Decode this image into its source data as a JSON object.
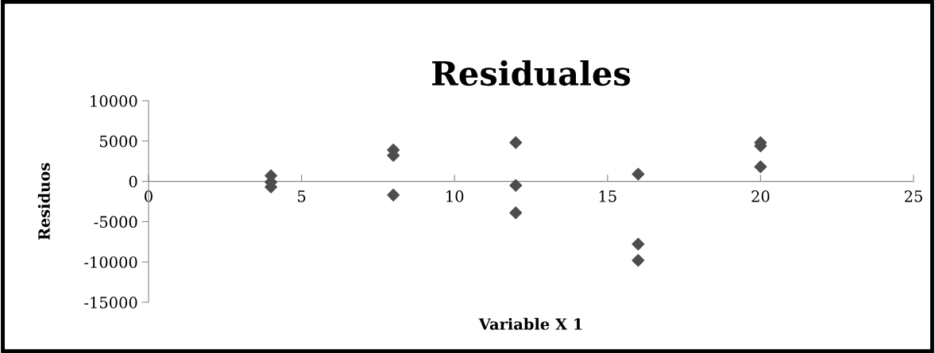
{
  "chart_data": {
    "type": "scatter",
    "title": "Residuales",
    "xlabel": "Variable X 1",
    "ylabel": "Residuos",
    "x": [
      4,
      4,
      4,
      8,
      8,
      8,
      12,
      12,
      12,
      16,
      16,
      16,
      20,
      20,
      20
    ],
    "values": [
      700,
      -100,
      -700,
      3900,
      3200,
      -1700,
      4800,
      -500,
      -3900,
      900,
      -7800,
      -9800,
      4800,
      4400,
      1800
    ],
    "color": "#4d4d4d",
    "marker": "diamond",
    "grid": false,
    "legend": false,
    "xlim": [
      0,
      25
    ],
    "xticks": [
      0,
      5,
      10,
      15,
      20,
      25
    ],
    "ylim": [
      -15000,
      10000
    ],
    "yticks": [
      -15000,
      -10000,
      -5000,
      0,
      5000,
      10000
    ]
  }
}
